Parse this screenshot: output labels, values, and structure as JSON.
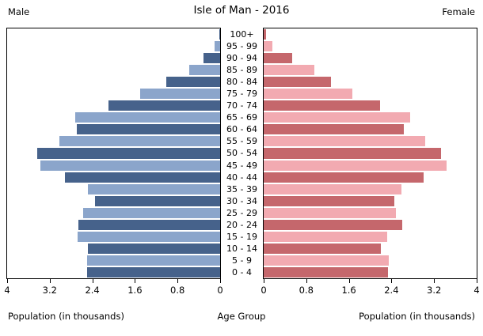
{
  "header": {
    "title": "Isle of Man - 2016",
    "left_label": "Male",
    "right_label": "Female"
  },
  "footer": {
    "left_axis_title": "Population (in thousands)",
    "center_axis_title": "Age Group",
    "right_axis_title": "Population (in thousands)"
  },
  "chart_data": {
    "type": "bar",
    "subtype": "population-pyramid",
    "title": "Isle of Man - 2016",
    "xlabel_left": "Population (in thousands)",
    "xlabel_right": "Population (in thousands)",
    "center_label": "Age Group",
    "xlim": [
      0,
      4
    ],
    "grid": false,
    "categories": [
      "100+",
      "95 - 99",
      "90 - 94",
      "85 - 89",
      "80 - 84",
      "75 - 79",
      "70 - 74",
      "65 - 69",
      "60 - 64",
      "55 - 59",
      "50 - 54",
      "45 - 49",
      "40 - 44",
      "35 - 39",
      "30 - 34",
      "25 - 29",
      "20 - 24",
      "15 - 19",
      "10 - 14",
      "5 - 9",
      "0 - 4"
    ],
    "series": [
      {
        "name": "Male",
        "side": "left",
        "values": [
          0.02,
          0.1,
          0.31,
          0.58,
          1.01,
          1.5,
          2.09,
          2.72,
          2.69,
          3.02,
          3.43,
          3.37,
          2.92,
          2.48,
          2.35,
          2.58,
          2.66,
          2.68,
          2.48,
          2.5,
          2.5
        ]
      },
      {
        "name": "Female",
        "side": "right",
        "values": [
          0.05,
          0.16,
          0.53,
          0.95,
          1.26,
          1.66,
          2.18,
          2.75,
          2.63,
          3.04,
          3.33,
          3.43,
          3.01,
          2.58,
          2.45,
          2.48,
          2.6,
          2.32,
          2.2,
          2.35,
          2.34
        ]
      }
    ],
    "ticks": [
      0,
      0.8,
      1.6,
      2.4,
      3.2,
      4
    ],
    "tick_labels": [
      "0",
      "0.8",
      "1.6",
      "2.4",
      "3.2",
      "4"
    ],
    "colors": {
      "male_dark": "#46628B",
      "male_light": "#8BA5CB",
      "female_dark": "#C5676C",
      "female_light": "#F2AAB1"
    }
  }
}
